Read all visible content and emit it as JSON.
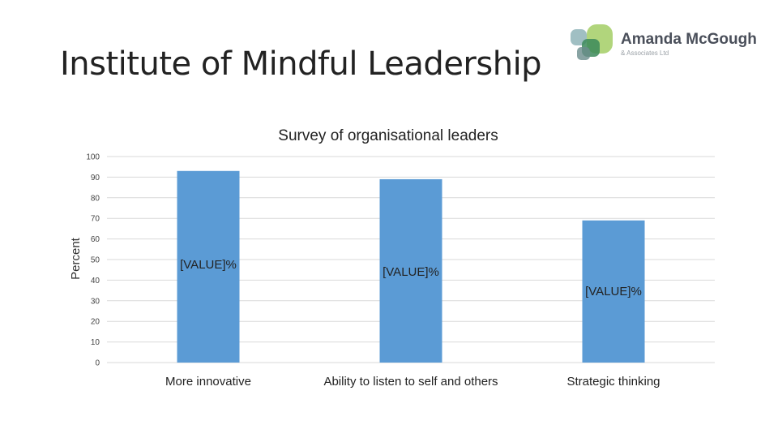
{
  "slide": {
    "title": "Institute of Mindful Leadership"
  },
  "logo": {
    "name": "Amanda McGough",
    "subtitle": "& Associates Ltd",
    "colors": [
      "#7aab8e",
      "#a8d06e",
      "#3c8a5a",
      "#6a8c8c"
    ]
  },
  "chart_data": {
    "type": "bar",
    "title": "Survey of organisational leaders",
    "ylabel": "Percent",
    "xlabel": "",
    "ylim": [
      0,
      100
    ],
    "yticks": [
      0,
      10,
      20,
      30,
      40,
      50,
      60,
      70,
      80,
      90,
      100
    ],
    "categories": [
      "More innovative",
      "Ability to listen to self and others",
      "Strategic thinking"
    ],
    "values": [
      93,
      89,
      69
    ],
    "data_labels": [
      "[VALUE]%",
      "[VALUE]%",
      "[VALUE]%"
    ],
    "bar_color": "#5b9bd5",
    "grid": true,
    "legend": "none"
  }
}
